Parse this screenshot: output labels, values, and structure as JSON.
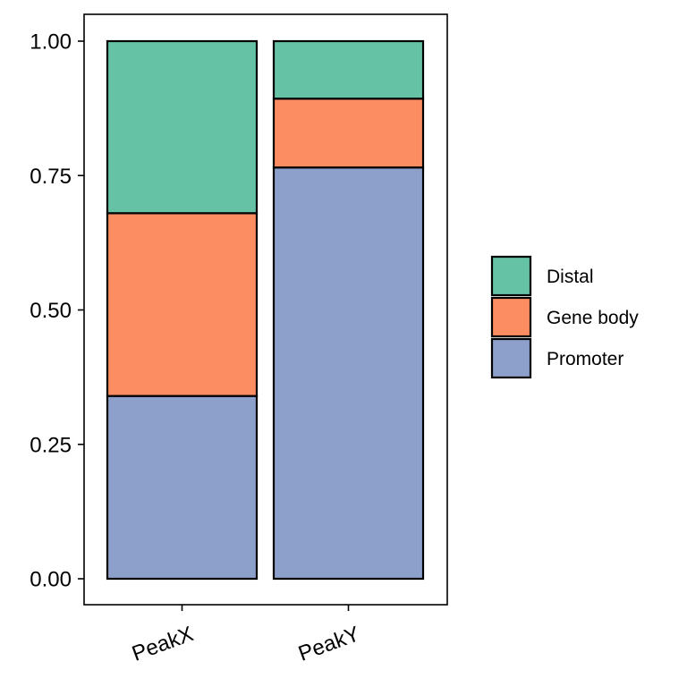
{
  "chart_data": {
    "type": "bar",
    "stacked": true,
    "normalized": true,
    "categories": [
      "PeakX",
      "PeakY"
    ],
    "series": [
      {
        "name": "Promoter",
        "values": [
          0.34,
          0.765
        ],
        "color": "#8da0cb"
      },
      {
        "name": "Gene body",
        "values": [
          0.34,
          0.128
        ],
        "color": "#fc8d62"
      },
      {
        "name": "Distal",
        "values": [
          0.32,
          0.107
        ],
        "color": "#66c2a5"
      }
    ],
    "legend": {
      "position": "right",
      "entries": [
        "Distal",
        "Gene body",
        "Promoter"
      ]
    },
    "yticks": [
      "0.00",
      "0.25",
      "0.50",
      "0.75",
      "1.00"
    ],
    "ylim": [
      0,
      1
    ],
    "grid": false,
    "title": "",
    "xlabel": "",
    "ylabel": ""
  }
}
